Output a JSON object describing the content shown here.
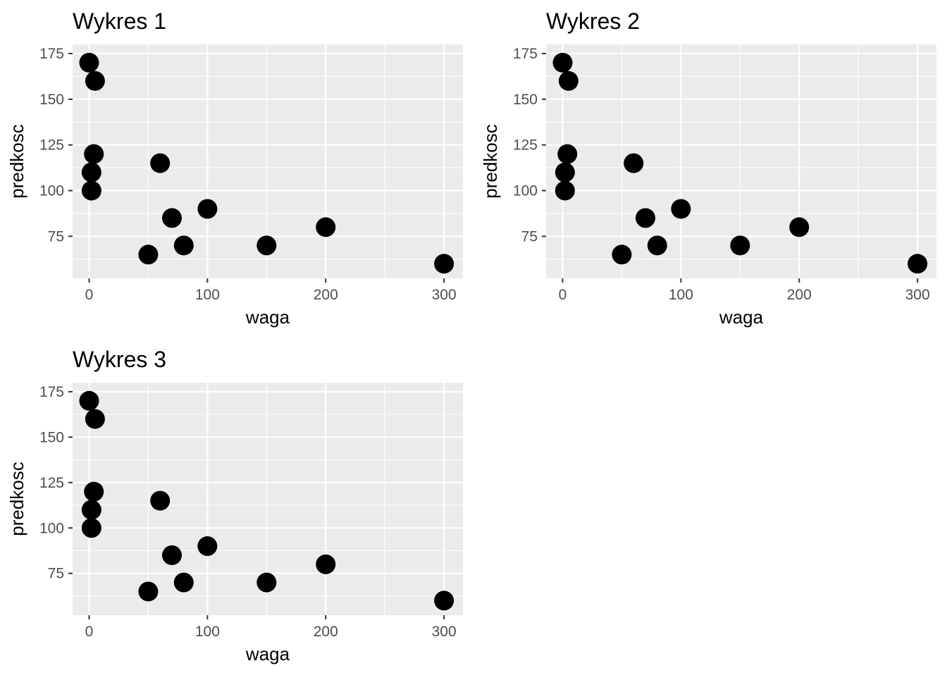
{
  "chart_data": [
    {
      "type": "scatter",
      "title": "Wykres 1",
      "xlabel": "waga",
      "ylabel": "predkosc",
      "xlim": [
        -14,
        316
      ],
      "ylim": [
        52,
        180
      ],
      "xticks": [
        0,
        100,
        200,
        300
      ],
      "yticks": [
        75,
        100,
        125,
        150,
        175
      ],
      "grid": true,
      "legend": "none",
      "point_color": "#000000",
      "panel_color": "#ebebeb",
      "x": [
        0,
        5,
        4,
        2,
        2,
        60,
        100,
        70,
        80,
        50,
        150,
        200,
        300
      ],
      "y": [
        170,
        160,
        120,
        110,
        100,
        115,
        90,
        85,
        70,
        65,
        70,
        80,
        60
      ]
    },
    {
      "type": "scatter",
      "title": "Wykres 2",
      "xlabel": "waga",
      "ylabel": "predkosc",
      "xlim": [
        -14,
        316
      ],
      "ylim": [
        52,
        180
      ],
      "xticks": [
        0,
        100,
        200,
        300
      ],
      "yticks": [
        75,
        100,
        125,
        150,
        175
      ],
      "grid": true,
      "legend": "none",
      "point_color": "#000000",
      "panel_color": "#ebebeb",
      "x": [
        0,
        5,
        4,
        2,
        2,
        60,
        100,
        70,
        80,
        50,
        150,
        200,
        300
      ],
      "y": [
        170,
        160,
        120,
        110,
        100,
        115,
        90,
        85,
        70,
        65,
        70,
        80,
        60
      ]
    },
    {
      "type": "scatter",
      "title": "Wykres 3",
      "xlabel": "waga",
      "ylabel": "predkosc",
      "xlim": [
        -14,
        316
      ],
      "ylim": [
        52,
        180
      ],
      "xticks": [
        0,
        100,
        200,
        300
      ],
      "yticks": [
        75,
        100,
        125,
        150,
        175
      ],
      "grid": true,
      "legend": "none",
      "point_color": "#000000",
      "panel_color": "#ebebeb",
      "x": [
        0,
        5,
        4,
        2,
        2,
        60,
        100,
        70,
        80,
        50,
        150,
        200,
        300
      ],
      "y": [
        170,
        160,
        120,
        110,
        100,
        115,
        90,
        85,
        70,
        65,
        70,
        80,
        60
      ]
    }
  ]
}
